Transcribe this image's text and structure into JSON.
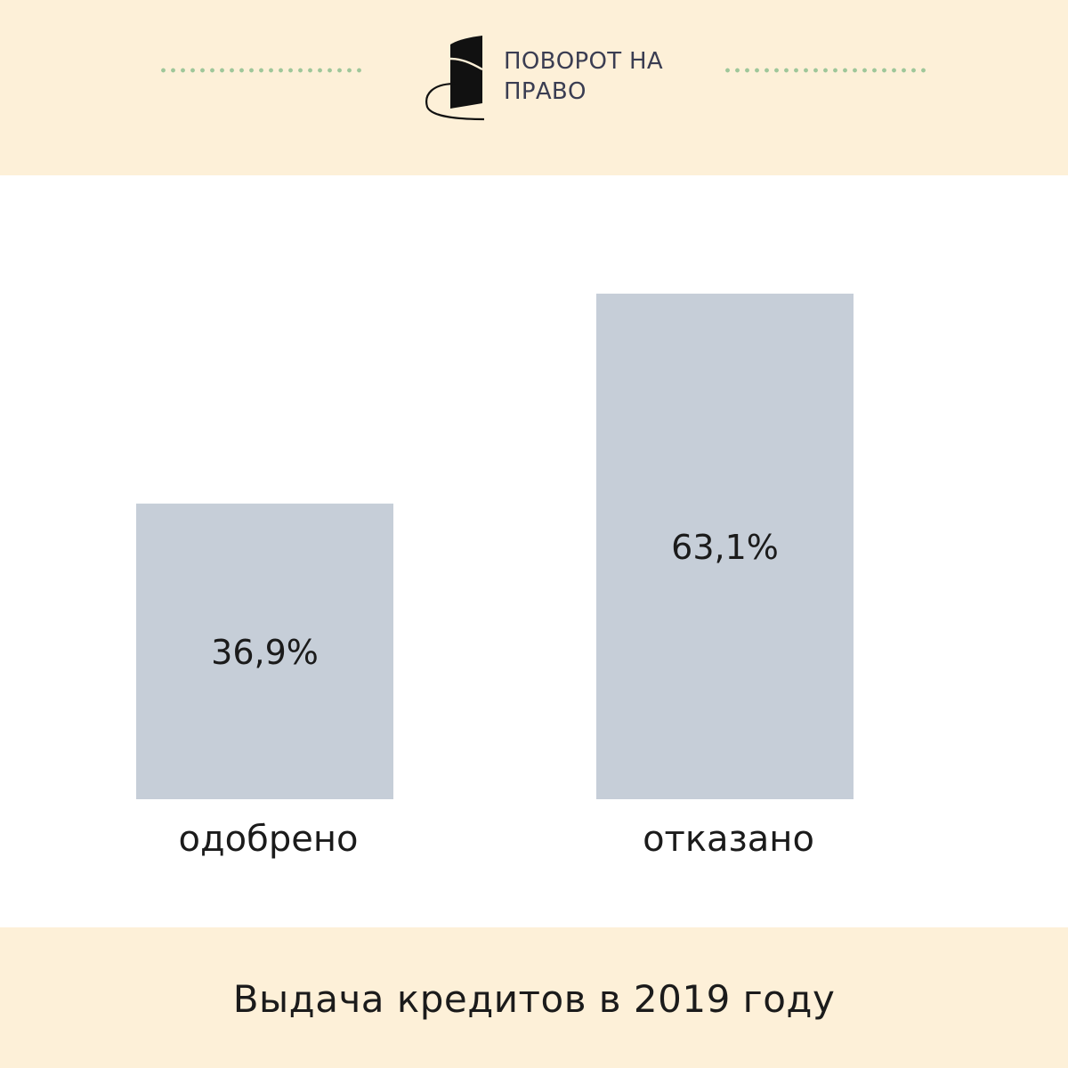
{
  "colors": {
    "band": "#fdf0d8",
    "dots": "#9fc79a",
    "bar": "#c6ced8",
    "text": "#1b1b1b",
    "brand_text": "#3a3d52",
    "logo": "#111111"
  },
  "brand": {
    "logo_icon": "spiral-book-logo-icon",
    "line1": "ПОВОРОТ НА",
    "line2": "ПРАВО"
  },
  "chart_data": {
    "type": "bar",
    "categories": [
      "одобрено",
      "отказано"
    ],
    "values": [
      36.9,
      63.1
    ],
    "value_labels": [
      "36,9%",
      "63,1%"
    ],
    "unit": "%",
    "ylim": [
      0,
      70.2
    ],
    "grid": false,
    "legend": "none",
    "title": "Выдача кредитов в 2019 году"
  }
}
